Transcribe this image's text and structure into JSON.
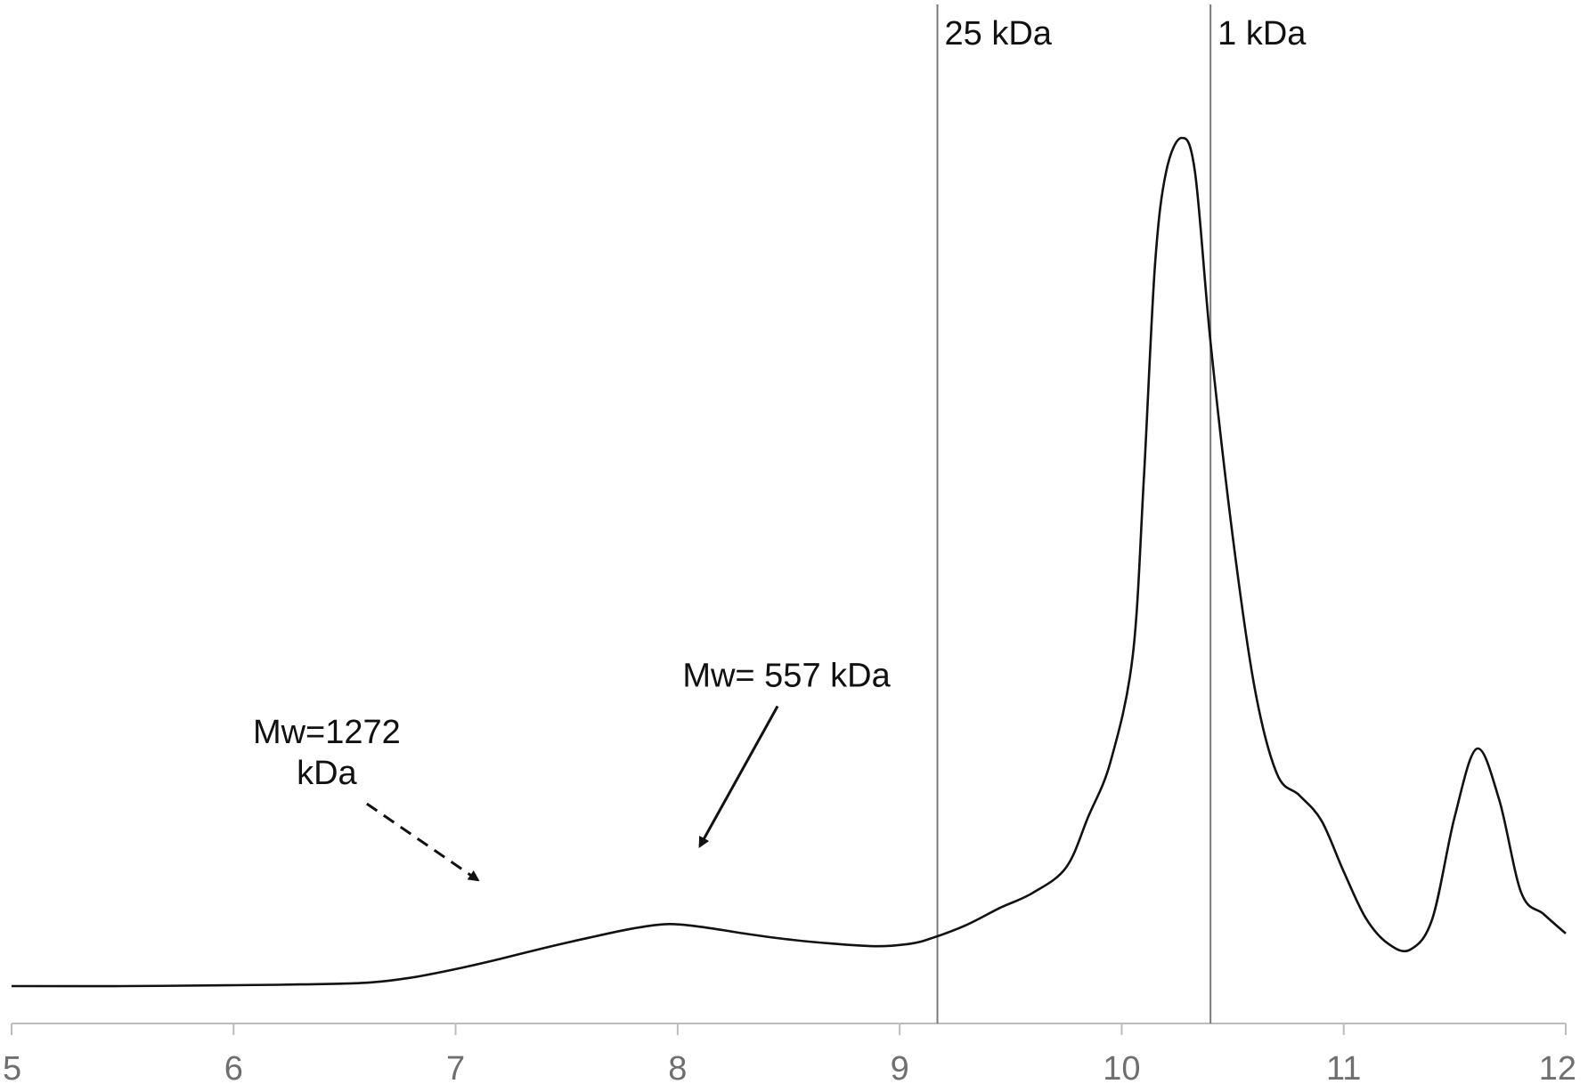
{
  "chart_data": {
    "type": "line",
    "title": "",
    "xlabel": "",
    "ylabel": "",
    "xlim": [
      5,
      12
    ],
    "ylim": [
      0,
      1
    ],
    "x_ticks": [
      "5",
      "6",
      "7",
      "8",
      "9",
      "10",
      "11",
      "12"
    ],
    "grid": false,
    "legend": "none",
    "series": [
      {
        "color": "#111111",
        "points": [
          [
            5.0,
            0.0
          ],
          [
            5.5,
            0.0
          ],
          [
            6.0,
            0.001
          ],
          [
            6.3,
            0.002
          ],
          [
            6.6,
            0.004
          ],
          [
            6.8,
            0.01
          ],
          [
            7.0,
            0.02
          ],
          [
            7.2,
            0.032
          ],
          [
            7.4,
            0.045
          ],
          [
            7.6,
            0.057
          ],
          [
            7.8,
            0.068
          ],
          [
            7.95,
            0.073
          ],
          [
            8.1,
            0.07
          ],
          [
            8.3,
            0.062
          ],
          [
            8.5,
            0.055
          ],
          [
            8.7,
            0.05
          ],
          [
            8.9,
            0.047
          ],
          [
            9.05,
            0.05
          ],
          [
            9.15,
            0.057
          ],
          [
            9.3,
            0.072
          ],
          [
            9.45,
            0.092
          ],
          [
            9.6,
            0.11
          ],
          [
            9.75,
            0.14
          ],
          [
            9.85,
            0.2
          ],
          [
            9.95,
            0.265
          ],
          [
            10.05,
            0.39
          ],
          [
            10.1,
            0.6
          ],
          [
            10.15,
            0.85
          ],
          [
            10.2,
            0.96
          ],
          [
            10.27,
            1.0
          ],
          [
            10.33,
            0.96
          ],
          [
            10.4,
            0.76
          ],
          [
            10.5,
            0.53
          ],
          [
            10.6,
            0.35
          ],
          [
            10.7,
            0.25
          ],
          [
            10.8,
            0.225
          ],
          [
            10.9,
            0.195
          ],
          [
            11.0,
            0.135
          ],
          [
            11.1,
            0.08
          ],
          [
            11.2,
            0.05
          ],
          [
            11.3,
            0.043
          ],
          [
            11.4,
            0.08
          ],
          [
            11.5,
            0.2
          ],
          [
            11.6,
            0.28
          ],
          [
            11.7,
            0.22
          ],
          [
            11.8,
            0.11
          ],
          [
            11.9,
            0.085
          ],
          [
            12.0,
            0.062
          ]
        ]
      }
    ],
    "vlines": [
      {
        "x": 9.17,
        "label": "25 kDa",
        "color": "#7a7a7a"
      },
      {
        "x": 10.4,
        "label": "1 kDa",
        "color": "#7a7a7a"
      }
    ],
    "annotations": [
      {
        "lines": [
          "Mw=1272",
          "kDa"
        ],
        "arrow_style": "dashed",
        "arrow_from": [
          6.6,
          0.215
        ],
        "arrow_to": [
          7.1,
          0.125
        ]
      },
      {
        "lines": [
          "Mw= 557 kDa"
        ],
        "arrow_style": "solid",
        "arrow_from": [
          8.45,
          0.33
        ],
        "arrow_to": [
          8.1,
          0.165
        ]
      }
    ]
  }
}
